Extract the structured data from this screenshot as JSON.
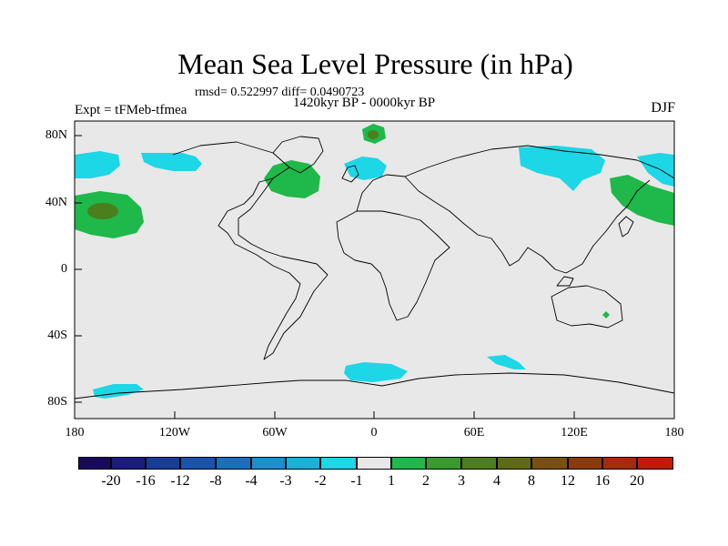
{
  "title": "Mean Sea Level Pressure (in hPa)",
  "stats": "rmsd= 0.522997 diff= 0.0490723",
  "period": "1420kyr BP - 0000kyr BP",
  "experiment": "Expt = tFMeb-tfmea",
  "season": "DJF",
  "map": {
    "x_ticks": [
      "180",
      "120W",
      "60W",
      "0",
      "60E",
      "120E",
      "180"
    ],
    "y_ticks": [
      "80N",
      "40N",
      "0",
      "40S",
      "80S"
    ]
  },
  "colorbar": {
    "colors": [
      "#1a0a5e",
      "#1c1c80",
      "#173c9c",
      "#1a52b0",
      "#1b6fc0",
      "#1a8fd2",
      "#19b0e0",
      "#1dd6e6",
      "#e8e8e8",
      "#1fb84a",
      "#3a9a2e",
      "#4b7e1c",
      "#5e6a14",
      "#7a5010",
      "#8c3a0a",
      "#a82a08",
      "#c21a06"
    ],
    "labels": [
      "-20",
      "-16",
      "-12",
      "-8",
      "-4",
      "-3",
      "-2",
      "-1",
      "1",
      "2",
      "3",
      "4",
      "8",
      "12",
      "16",
      "20"
    ]
  }
}
